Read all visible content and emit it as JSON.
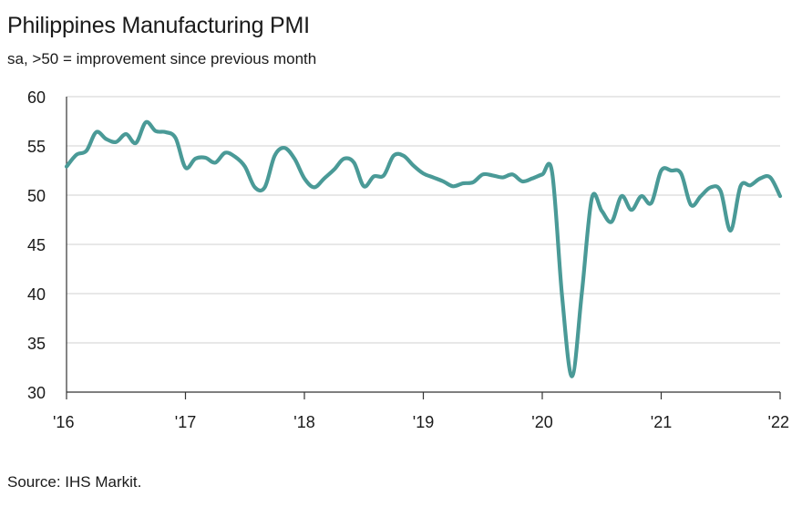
{
  "title": "Philippines Manufacturing PMI",
  "subtitle": "sa, >50 = improvement since previous month",
  "source": "Source: IHS Markit.",
  "chart_data": {
    "type": "line",
    "title": "Philippines Manufacturing PMI",
    "xlabel": "",
    "ylabel": "",
    "ylim": [
      30,
      60
    ],
    "yticks": [
      30,
      35,
      40,
      45,
      50,
      55,
      60
    ],
    "xlim": [
      2016.0,
      2022.0
    ],
    "xticks": [
      2016,
      2017,
      2018,
      2019,
      2020,
      2021,
      2022
    ],
    "xtick_labels": [
      "'16",
      "'17",
      "'18",
      "'19",
      "'20",
      "'21",
      "'22"
    ],
    "grid": true,
    "color": "#4a9a97",
    "series": [
      {
        "name": "Philippines Manufacturing PMI",
        "x": [
          2016.0,
          2016.083,
          2016.167,
          2016.25,
          2016.333,
          2016.417,
          2016.5,
          2016.583,
          2016.667,
          2016.75,
          2016.833,
          2016.917,
          2017.0,
          2017.083,
          2017.167,
          2017.25,
          2017.333,
          2017.417,
          2017.5,
          2017.583,
          2017.667,
          2017.75,
          2017.833,
          2017.917,
          2018.0,
          2018.083,
          2018.167,
          2018.25,
          2018.333,
          2018.417,
          2018.5,
          2018.583,
          2018.667,
          2018.75,
          2018.833,
          2018.917,
          2019.0,
          2019.083,
          2019.167,
          2019.25,
          2019.333,
          2019.417,
          2019.5,
          2019.583,
          2019.667,
          2019.75,
          2019.833,
          2019.917,
          2020.0,
          2020.083,
          2020.167,
          2020.25,
          2020.333,
          2020.417,
          2020.5,
          2020.583,
          2020.667,
          2020.75,
          2020.833,
          2020.917,
          2021.0,
          2021.083,
          2021.167,
          2021.25,
          2021.333,
          2021.417,
          2021.5,
          2021.583,
          2021.667,
          2021.75,
          2021.833,
          2021.917,
          2022.0
        ],
        "values": [
          52.9,
          54.1,
          54.5,
          56.4,
          55.7,
          55.4,
          56.2,
          55.3,
          57.4,
          56.5,
          56.4,
          55.8,
          52.8,
          53.7,
          53.8,
          53.3,
          54.3,
          53.9,
          52.9,
          50.8,
          50.8,
          54.0,
          54.8,
          53.7,
          51.7,
          50.8,
          51.7,
          52.6,
          53.7,
          53.3,
          50.9,
          51.9,
          52.0,
          54.0,
          54.0,
          53.0,
          52.2,
          51.8,
          51.4,
          50.9,
          51.2,
          51.3,
          52.1,
          52.0,
          51.8,
          52.1,
          51.4,
          51.7,
          52.1,
          52.3,
          39.7,
          31.6,
          40.1,
          49.7,
          48.4,
          47.3,
          49.9,
          48.5,
          49.9,
          49.2,
          52.5,
          52.5,
          52.2,
          49.0,
          49.9,
          50.8,
          50.4,
          46.4,
          50.9,
          51.0,
          51.7,
          51.8,
          49.9
        ]
      }
    ]
  }
}
